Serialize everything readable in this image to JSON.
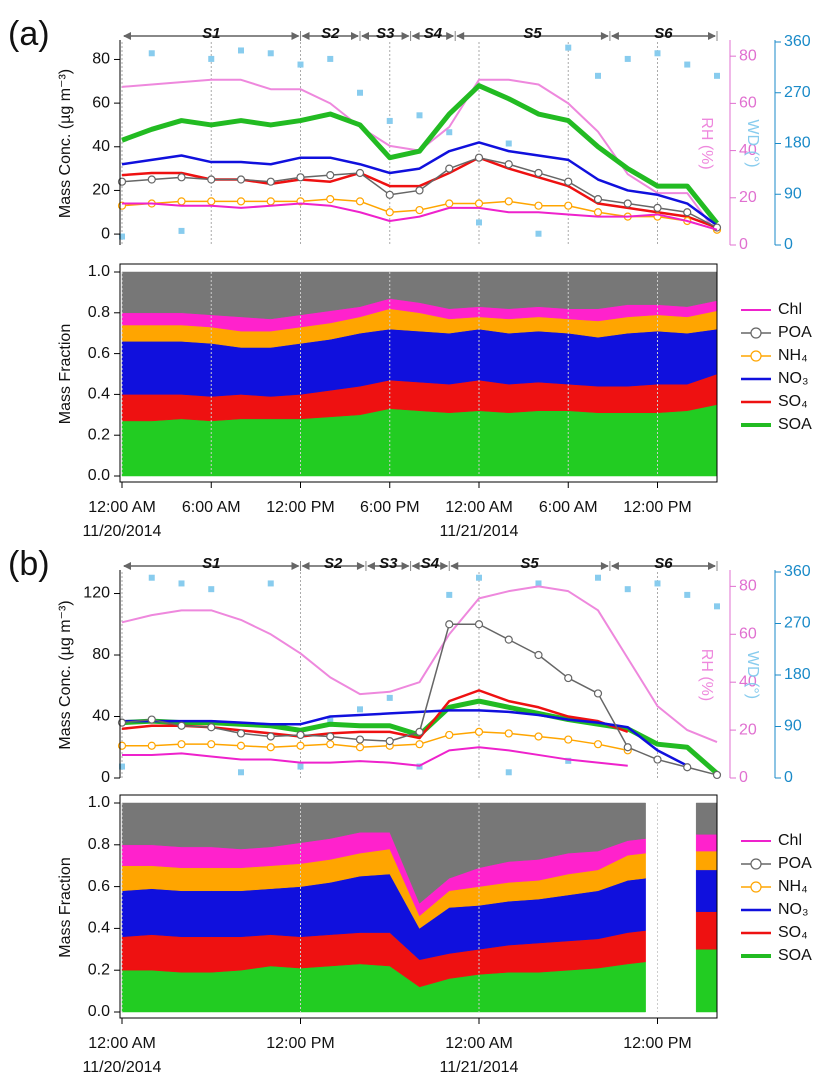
{
  "chart_data": [
    {
      "type": "line",
      "panel": "(a)",
      "periods": [
        {
          "label": "S1",
          "start": 0,
          "end": 12
        },
        {
          "label": "S2",
          "start": 12,
          "end": 16
        },
        {
          "label": "S3",
          "start": 16,
          "end": 19.4
        },
        {
          "label": "S4",
          "start": 19.4,
          "end": 22.4
        },
        {
          "label": "S5",
          "start": 22.4,
          "end": 32.8
        },
        {
          "label": "S6",
          "start": 32.8,
          "end": 40
        }
      ],
      "x": [
        0,
        2,
        4,
        6,
        8,
        10,
        12,
        14,
        16,
        18,
        20,
        22,
        24,
        26,
        28,
        30,
        32,
        34,
        36,
        38,
        40
      ],
      "xlim": [
        0,
        40
      ],
      "xticks": [
        0,
        6,
        12,
        18,
        24,
        30,
        36
      ],
      "grid": true,
      "ylabel": "Mass Conc. (µg m⁻³)",
      "ylim": [
        -5,
        88
      ],
      "yticks": [
        0,
        20,
        40,
        60,
        80
      ],
      "y2label": "RH (%)",
      "y2lim": [
        0,
        86
      ],
      "y2ticks": [
        0,
        20,
        40,
        60,
        80
      ],
      "y3label": "WD (°)",
      "y3lim": [
        0,
        360
      ],
      "y3ticks": [
        0,
        90,
        180,
        270,
        360
      ],
      "series": [
        {
          "name": "Chl",
          "color": "#ee22cc",
          "width": 2,
          "values": [
            14,
            14,
            13,
            13,
            12,
            13,
            14,
            13,
            10,
            6,
            8,
            12,
            12,
            10,
            10,
            9,
            8,
            8,
            9,
            6,
            2
          ]
        },
        {
          "name": "POA",
          "color": "#666666",
          "width": 1.5,
          "marker": "circle",
          "values": [
            24,
            25,
            26,
            25,
            25,
            24,
            26,
            27,
            28,
            18,
            20,
            30,
            35,
            32,
            28,
            24,
            16,
            14,
            12,
            10,
            3
          ]
        },
        {
          "name": "NH₄",
          "color": "#ffa500",
          "width": 1.5,
          "marker": "circle",
          "values": [
            13,
            14,
            15,
            15,
            15,
            15,
            15,
            16,
            15,
            10,
            11,
            14,
            14,
            15,
            13,
            13,
            10,
            8,
            8,
            6,
            2
          ]
        },
        {
          "name": "NO₃",
          "color": "#1010dd",
          "width": 2.5,
          "values": [
            32,
            34,
            36,
            33,
            33,
            32,
            35,
            35,
            32,
            28,
            30,
            38,
            42,
            38,
            36,
            34,
            25,
            20,
            18,
            14,
            4
          ]
        },
        {
          "name": "SO₄",
          "color": "#ee1111",
          "width": 2.5,
          "values": [
            27,
            28,
            28,
            25,
            25,
            23,
            25,
            24,
            28,
            22,
            22,
            28,
            35,
            30,
            26,
            22,
            14,
            12,
            10,
            8,
            3
          ]
        },
        {
          "name": "SOA",
          "color": "#22bb22",
          "width": 5,
          "values": [
            43,
            48,
            52,
            50,
            52,
            50,
            52,
            55,
            50,
            35,
            38,
            55,
            68,
            62,
            55,
            52,
            40,
            30,
            22,
            22,
            5
          ]
        },
        {
          "axis": "y2",
          "color": "#ee88dd",
          "width": 2,
          "values": [
            67,
            68,
            69,
            70,
            70,
            66,
            66,
            60,
            50,
            42,
            40,
            50,
            70,
            70,
            68,
            60,
            48,
            30,
            22,
            22,
            5
          ]
        },
        {
          "axis": "y3",
          "type": "scatter",
          "color": "#88ccee",
          "values": [
            15,
            340,
            25,
            330,
            345,
            340,
            320,
            330,
            270,
            220,
            230,
            200,
            40,
            180,
            20,
            350,
            300,
            330,
            340,
            320,
            300
          ]
        }
      ]
    },
    {
      "type": "area",
      "x": [
        0,
        2,
        4,
        6,
        8,
        10,
        12,
        14,
        16,
        18,
        20,
        22,
        24,
        26,
        28,
        30,
        32,
        34,
        36,
        38,
        40
      ],
      "xlim": [
        0,
        40
      ],
      "grid": true,
      "xticks": [
        {
          "value": 0,
          "label": "12:00 AM"
        },
        {
          "value": 6,
          "label": "6:00 AM"
        },
        {
          "value": 12,
          "label": "12:00 PM"
        },
        {
          "value": 18,
          "label": "6:00 PM"
        },
        {
          "value": 24,
          "label": "12:00 AM"
        },
        {
          "value": 30,
          "label": "6:00 AM"
        },
        {
          "value": 36,
          "label": "12:00 PM"
        }
      ],
      "xtick_dates": [
        {
          "value": 0,
          "label": "11/20/2014"
        },
        {
          "value": 24,
          "label": "11/21/2014"
        }
      ],
      "ylabel": "Mass Fraction",
      "ylim": [
        0,
        1
      ],
      "yticks": [
        {
          "value": 0,
          "label": "0.0"
        },
        0.2,
        0.4,
        0.6,
        0.8,
        {
          "value": 1,
          "label": "1.0"
        }
      ],
      "series": [
        {
          "color": "#22cc22",
          "values": [
            0.27,
            0.27,
            0.28,
            0.27,
            0.28,
            0.28,
            0.28,
            0.29,
            0.3,
            0.33,
            0.32,
            0.31,
            0.32,
            0.31,
            0.32,
            0.32,
            0.31,
            0.31,
            0.31,
            0.32,
            0.35
          ]
        },
        {
          "color": "#ee1111",
          "values": [
            0.13,
            0.13,
            0.12,
            0.12,
            0.12,
            0.11,
            0.12,
            0.13,
            0.14,
            0.14,
            0.14,
            0.14,
            0.15,
            0.14,
            0.14,
            0.13,
            0.13,
            0.13,
            0.14,
            0.13,
            0.15
          ]
        },
        {
          "color": "#1010dd",
          "values": [
            0.26,
            0.26,
            0.26,
            0.26,
            0.23,
            0.24,
            0.25,
            0.25,
            0.26,
            0.25,
            0.25,
            0.25,
            0.25,
            0.25,
            0.25,
            0.25,
            0.24,
            0.26,
            0.26,
            0.25,
            0.22
          ]
        },
        {
          "color": "#ffa500",
          "values": [
            0.08,
            0.08,
            0.08,
            0.08,
            0.08,
            0.08,
            0.08,
            0.08,
            0.08,
            0.1,
            0.09,
            0.07,
            0.06,
            0.07,
            0.07,
            0.07,
            0.08,
            0.08,
            0.08,
            0.08,
            0.09
          ]
        },
        {
          "color": "#ff22cc",
          "values": [
            0.06,
            0.06,
            0.06,
            0.06,
            0.07,
            0.06,
            0.06,
            0.06,
            0.05,
            0.05,
            0.05,
            0.05,
            0.05,
            0.05,
            0.05,
            0.05,
            0.06,
            0.06,
            0.05,
            0.05,
            0.05
          ]
        },
        {
          "color": "#777777",
          "values": [
            0.2,
            0.2,
            0.2,
            0.21,
            0.22,
            0.23,
            0.21,
            0.19,
            0.17,
            0.13,
            0.15,
            0.18,
            0.17,
            0.18,
            0.17,
            0.18,
            0.18,
            0.16,
            0.16,
            0.17,
            0.14
          ]
        }
      ]
    },
    {
      "type": "line",
      "panel": "(b)",
      "periods": [
        {
          "label": "S1",
          "start": 0,
          "end": 12
        },
        {
          "label": "S2",
          "start": 12,
          "end": 16.4
        },
        {
          "label": "S3",
          "start": 16.4,
          "end": 19.4
        },
        {
          "label": "S4",
          "start": 19.4,
          "end": 22
        },
        {
          "label": "S5",
          "start": 22,
          "end": 32.8
        },
        {
          "label": "S6",
          "start": 32.8,
          "end": 40
        }
      ],
      "x": [
        0,
        2,
        4,
        6,
        8,
        10,
        12,
        14,
        16,
        18,
        20,
        22,
        24,
        26,
        28,
        30,
        32,
        34,
        36,
        38,
        40
      ],
      "xlim": [
        0,
        40
      ],
      "xticks": [
        0,
        12,
        24,
        36
      ],
      "grid": true,
      "ylabel": "Mass Conc. (µg m⁻³)",
      "ylim": [
        0,
        134
      ],
      "yticks": [
        0,
        40,
        80,
        120
      ],
      "y2label": "RH (%)",
      "y2lim": [
        0,
        86
      ],
      "y2ticks": [
        0,
        20,
        40,
        60,
        80
      ],
      "y3label": "WD (°)",
      "y3lim": [
        0,
        360
      ],
      "y3ticks": [
        0,
        90,
        180,
        270,
        360
      ],
      "series": [
        {
          "name": "Chl",
          "color": "#ee22cc",
          "width": 2,
          "values": [
            15,
            15,
            16,
            14,
            12,
            12,
            10,
            10,
            11,
            10,
            8,
            18,
            20,
            18,
            15,
            12,
            10,
            8,
            null,
            null,
            null
          ]
        },
        {
          "name": "POA",
          "color": "#666666",
          "width": 1.5,
          "marker": "circle",
          "values": [
            36,
            38,
            34,
            33,
            29,
            27,
            28,
            27,
            25,
            24,
            30,
            100,
            100,
            90,
            80,
            65,
            55,
            20,
            12,
            7,
            2
          ]
        },
        {
          "name": "NH₄",
          "color": "#ffa500",
          "width": 1.5,
          "marker": "circle",
          "values": [
            21,
            21,
            22,
            22,
            21,
            20,
            21,
            22,
            20,
            21,
            22,
            28,
            30,
            29,
            27,
            25,
            22,
            18,
            null,
            null,
            null
          ]
        },
        {
          "name": "NO₃",
          "color": "#1010dd",
          "width": 2.5,
          "values": [
            37,
            37,
            37,
            37,
            36,
            35,
            35,
            40,
            41,
            42,
            43,
            44,
            44,
            43,
            41,
            38,
            36,
            33,
            18,
            8,
            null
          ]
        },
        {
          "name": "SO₄",
          "color": "#ee1111",
          "width": 2.5,
          "values": [
            32,
            34,
            34,
            33,
            31,
            29,
            27,
            29,
            30,
            30,
            26,
            50,
            57,
            50,
            46,
            40,
            37,
            30,
            null,
            null,
            null
          ]
        },
        {
          "name": "SOA",
          "color": "#22bb22",
          "width": 5,
          "values": [
            36,
            37,
            36,
            36,
            35,
            34,
            31,
            35,
            34,
            34,
            28,
            46,
            50,
            46,
            42,
            38,
            35,
            32,
            22,
            20,
            3
          ]
        },
        {
          "axis": "y2",
          "color": "#ee88dd",
          "width": 2,
          "values": [
            65,
            68,
            70,
            70,
            66,
            60,
            52,
            42,
            35,
            36,
            40,
            60,
            75,
            78,
            80,
            78,
            70,
            50,
            30,
            20,
            15
          ]
        },
        {
          "axis": "y3",
          "type": "scatter",
          "color": "#88ccee",
          "values": [
            20,
            350,
            340,
            330,
            10,
            340,
            20,
            100,
            120,
            140,
            20,
            320,
            350,
            10,
            340,
            30,
            350,
            330,
            340,
            320,
            300
          ]
        }
      ]
    },
    {
      "type": "area",
      "x": [
        0,
        2,
        4,
        6,
        8,
        10,
        12,
        14,
        16,
        18,
        20,
        22,
        24,
        26,
        28,
        30,
        32,
        34,
        35.2,
        36,
        38.6,
        40
      ],
      "xlim": [
        0,
        40
      ],
      "grid": true,
      "xticks": [
        {
          "value": 0,
          "label": "12:00 AM"
        },
        {
          "value": 12,
          "label": "12:00 PM"
        },
        {
          "value": 24,
          "label": "12:00 AM"
        },
        {
          "value": 36,
          "label": "12:00 PM"
        }
      ],
      "xtick_dates": [
        {
          "value": 0,
          "label": "11/20/2014"
        },
        {
          "value": 24,
          "label": "11/21/2014"
        }
      ],
      "ylabel": "Mass Fraction",
      "ylim": [
        0,
        1
      ],
      "yticks": [
        {
          "value": 0,
          "label": "0.0"
        },
        0.2,
        0.4,
        0.6,
        0.8,
        {
          "value": 1,
          "label": "1.0"
        }
      ],
      "series": [
        {
          "color": "#22cc22",
          "values": [
            0.2,
            0.2,
            0.19,
            0.19,
            0.2,
            0.22,
            0.21,
            0.22,
            0.23,
            0.22,
            0.12,
            0.16,
            0.18,
            0.19,
            0.19,
            0.2,
            0.21,
            0.23,
            0.24,
            null,
            0.3,
            0.3
          ]
        },
        {
          "color": "#ee1111",
          "values": [
            0.16,
            0.17,
            0.17,
            0.17,
            0.16,
            0.15,
            0.15,
            0.15,
            0.15,
            0.16,
            0.13,
            0.12,
            0.12,
            0.13,
            0.14,
            0.14,
            0.14,
            0.15,
            0.15,
            null,
            0.18,
            0.18
          ]
        },
        {
          "color": "#1010dd",
          "values": [
            0.22,
            0.22,
            0.22,
            0.22,
            0.22,
            0.22,
            0.24,
            0.25,
            0.27,
            0.28,
            0.15,
            0.22,
            0.21,
            0.21,
            0.21,
            0.22,
            0.23,
            0.25,
            0.25,
            null,
            0.2,
            0.2
          ]
        },
        {
          "color": "#ffa500",
          "values": [
            0.12,
            0.11,
            0.11,
            0.11,
            0.11,
            0.11,
            0.11,
            0.11,
            0.11,
            0.12,
            0.06,
            0.08,
            0.09,
            0.09,
            0.09,
            0.1,
            0.1,
            0.12,
            0.12,
            null,
            0.09,
            0.09
          ]
        },
        {
          "color": "#ff22cc",
          "values": [
            0.1,
            0.1,
            0.1,
            0.1,
            0.09,
            0.09,
            0.1,
            0.1,
            0.1,
            0.08,
            0.06,
            0.06,
            0.09,
            0.1,
            0.1,
            0.1,
            0.09,
            0.07,
            0.07,
            null,
            0.08,
            0.08
          ]
        },
        {
          "color": "#777777",
          "values": [
            0.2,
            0.2,
            0.21,
            0.21,
            0.22,
            0.21,
            0.19,
            0.17,
            0.14,
            0.14,
            0.48,
            0.36,
            0.31,
            0.28,
            0.27,
            0.24,
            0.23,
            0.18,
            0.17,
            null,
            0.15,
            0.15
          ]
        }
      ]
    }
  ]
}
